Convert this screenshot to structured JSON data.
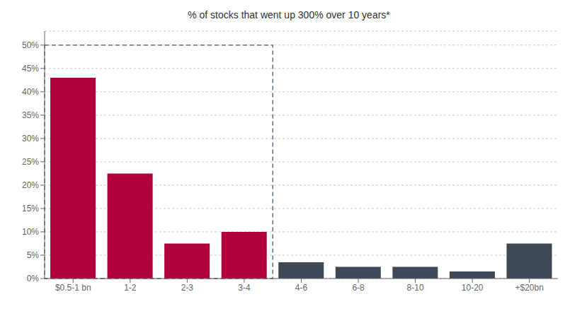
{
  "chart_data": {
    "type": "bar",
    "title": "% of stocks that went up 300% over 10 years*",
    "categories": [
      "$0.5-1 bn",
      "1-2",
      "2-3",
      "3-4",
      "4-6",
      "6-8",
      "8-10",
      "10-20",
      "+$20bn"
    ],
    "values": [
      43,
      22.5,
      7.5,
      10,
      3.5,
      2.5,
      2.5,
      1.5,
      7.5
    ],
    "colors": [
      "#b0003a",
      "#b0003a",
      "#b0003a",
      "#b0003a",
      "#3d4a55",
      "#3d4a55",
      "#3d4a55",
      "#3d4a55",
      "#3d4a55"
    ],
    "ylim": [
      0,
      53
    ],
    "yticks": [
      {
        "value": 0,
        "label": "0%"
      },
      {
        "value": 5,
        "label": "5%"
      },
      {
        "value": 10,
        "label": "10%"
      },
      {
        "value": 15,
        "label": "15%"
      },
      {
        "value": 20,
        "label": "20%"
      },
      {
        "value": 25,
        "label": "25%"
      },
      {
        "value": 30,
        "label": "30%"
      },
      {
        "value": 35,
        "label": "35%"
      },
      {
        "value": 40,
        "label": "40%"
      },
      {
        "value": 45,
        "label": "45%"
      },
      {
        "value": 50,
        "label": "50%"
      }
    ],
    "grid": true,
    "box": {
      "categories": [
        "$0.5-1 bn",
        "3-4"
      ],
      "ylim": [
        0,
        50
      ],
      "color": "#4a5a6a",
      "line_style": "dashed"
    }
  }
}
